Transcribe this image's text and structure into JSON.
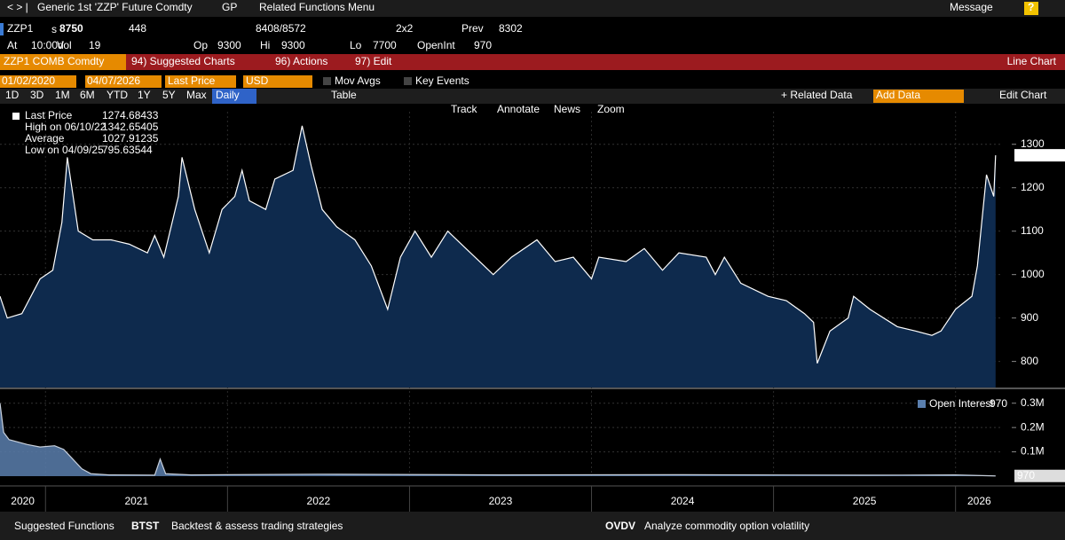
{
  "nav": {
    "items": [
      "Generic 1st 'ZZP' Future Comdty",
      "GP",
      "Related Functions Menu"
    ],
    "message": "Message",
    "help": "?"
  },
  "quote": {
    "ticker": "ZZP1",
    "price_prefix": "s",
    "price": "8750",
    "change": "448",
    "bid_ask": "8408/8572",
    "size": "2x2",
    "prev_label": "Prev",
    "prev": "8302",
    "at_label": "At",
    "at": "10:00d",
    "vol_label": "Vol",
    "vol": "19",
    "op_label": "Op",
    "op": "9300",
    "hi_label": "Hi",
    "hi": "9300",
    "lo_label": "Lo",
    "lo": "7700",
    "oi_label": "OpenInt",
    "oi": "970"
  },
  "toolbar": {
    "security": "ZZP1 COMB Comdty",
    "menus": [
      "94) Suggested Charts",
      "96) Actions",
      "97) Edit"
    ],
    "chart_type": "Line Chart"
  },
  "controls": {
    "start": "01/02/2020",
    "end": "04/07/2026",
    "field": "Last Price",
    "currency": "USD",
    "options": [
      "Mov Avgs",
      "Key Events"
    ]
  },
  "tabs": {
    "periods": [
      "1D",
      "3D",
      "1M",
      "6M",
      "YTD",
      "1Y",
      "5Y",
      "Max"
    ],
    "frequency": "Daily",
    "table": "Table",
    "related": "+ Related Data",
    "add": "Add Data",
    "edit": "Edit Chart"
  },
  "tools": [
    "Track",
    "Annotate",
    "News",
    "Zoom"
  ],
  "footer": {
    "title": "Suggested Functions",
    "items": [
      {
        "code": "BTST",
        "text": "Backtest & assess trading strategies"
      },
      {
        "code": "OVDV",
        "text": "Analyze commodity option volatility"
      }
    ]
  },
  "chart_data": [
    {
      "type": "area",
      "name": "Last Price",
      "color": "#ffffff",
      "fill": "#0e2a4d",
      "stats": [
        {
          "label": "High on 06/10/22",
          "value": 1342.65405
        },
        {
          "label": "Average",
          "value": 1027.91235
        },
        {
          "label": "Low on 04/09/25",
          "value": 795.63544
        }
      ],
      "x": [
        2020.75,
        2020.79,
        2020.87,
        2020.97,
        2021.04,
        2021.09,
        2021.12,
        2021.18,
        2021.26,
        2021.36,
        2021.46,
        2021.56,
        2021.6,
        2021.65,
        2021.73,
        2021.75,
        2021.82,
        2021.9,
        2021.97,
        2022.04,
        2022.08,
        2022.12,
        2022.21,
        2022.26,
        2022.36,
        2022.41,
        2022.46,
        2022.52,
        2022.6,
        2022.7,
        2022.79,
        2022.88,
        2022.95,
        2023.03,
        2023.12,
        2023.21,
        2023.31,
        2023.41,
        2023.46,
        2023.56,
        2023.7,
        2023.8,
        2023.9,
        2024.0,
        2024.04,
        2024.19,
        2024.29,
        2024.39,
        2024.48,
        2024.63,
        2024.68,
        2024.73,
        2024.82,
        2024.97,
        2025.07,
        2025.17,
        2025.22,
        2025.24,
        2025.31,
        2025.41,
        2025.44,
        2025.53,
        2025.68,
        2025.78,
        2025.87,
        2025.92,
        2026.0,
        2026.09,
        2026.12,
        2026.17,
        2026.21,
        2026.22
      ],
      "values": [
        950,
        900,
        910,
        990,
        1010,
        1120,
        1270,
        1100,
        1080,
        1080,
        1070,
        1050,
        1090,
        1040,
        1180,
        1270,
        1150,
        1050,
        1150,
        1180,
        1240,
        1170,
        1150,
        1220,
        1240,
        1342.65405,
        1250,
        1150,
        1110,
        1080,
        1020,
        920,
        1040,
        1100,
        1040,
        1100,
        1060,
        1020,
        1000,
        1040,
        1080,
        1030,
        1040,
        990,
        1040,
        1030,
        1060,
        1010,
        1050,
        1040,
        1000,
        1040,
        980,
        950,
        940,
        910,
        890,
        795.63544,
        870,
        900,
        950,
        920,
        880,
        870,
        860,
        870,
        920,
        950,
        1020,
        1230,
        1180,
        1274.68433
      ],
      "xlim": [
        2020.75,
        2026.26
      ],
      "xticks": [
        2020,
        2021,
        2022,
        2023,
        2024,
        2025,
        2026
      ],
      "ylim": [
        740,
        1375
      ],
      "yticks": [
        800,
        900,
        1000,
        1100,
        1200,
        1300
      ],
      "grid": true
    },
    {
      "type": "area",
      "name": "Open Interest",
      "color": "#c8d0dc",
      "fill": "#5a7fae",
      "x": [
        2020.75,
        2020.77,
        2020.8,
        2020.85,
        2020.9,
        2020.97,
        2021.05,
        2021.1,
        2021.15,
        2021.2,
        2021.25,
        2021.35,
        2021.6,
        2021.63,
        2021.66,
        2021.8,
        2022.5,
        2023.5,
        2024.5,
        2025.5,
        2026.0,
        2026.22
      ],
      "values": [
        300000,
        180000,
        150000,
        140000,
        130000,
        120000,
        125000,
        110000,
        70000,
        30000,
        10000,
        5000,
        4000,
        70000,
        10000,
        5000,
        8000,
        5000,
        6000,
        4000,
        5000,
        970
      ],
      "xlim": [
        2020.75,
        2026.26
      ],
      "ylim": [
        0,
        350000
      ],
      "yticks": [
        {
          "value": 100000,
          "label": "0.1M"
        },
        {
          "value": 200000,
          "label": "0.2M"
        },
        {
          "value": 300000,
          "label": "0.3M"
        }
      ],
      "grid": true
    }
  ]
}
